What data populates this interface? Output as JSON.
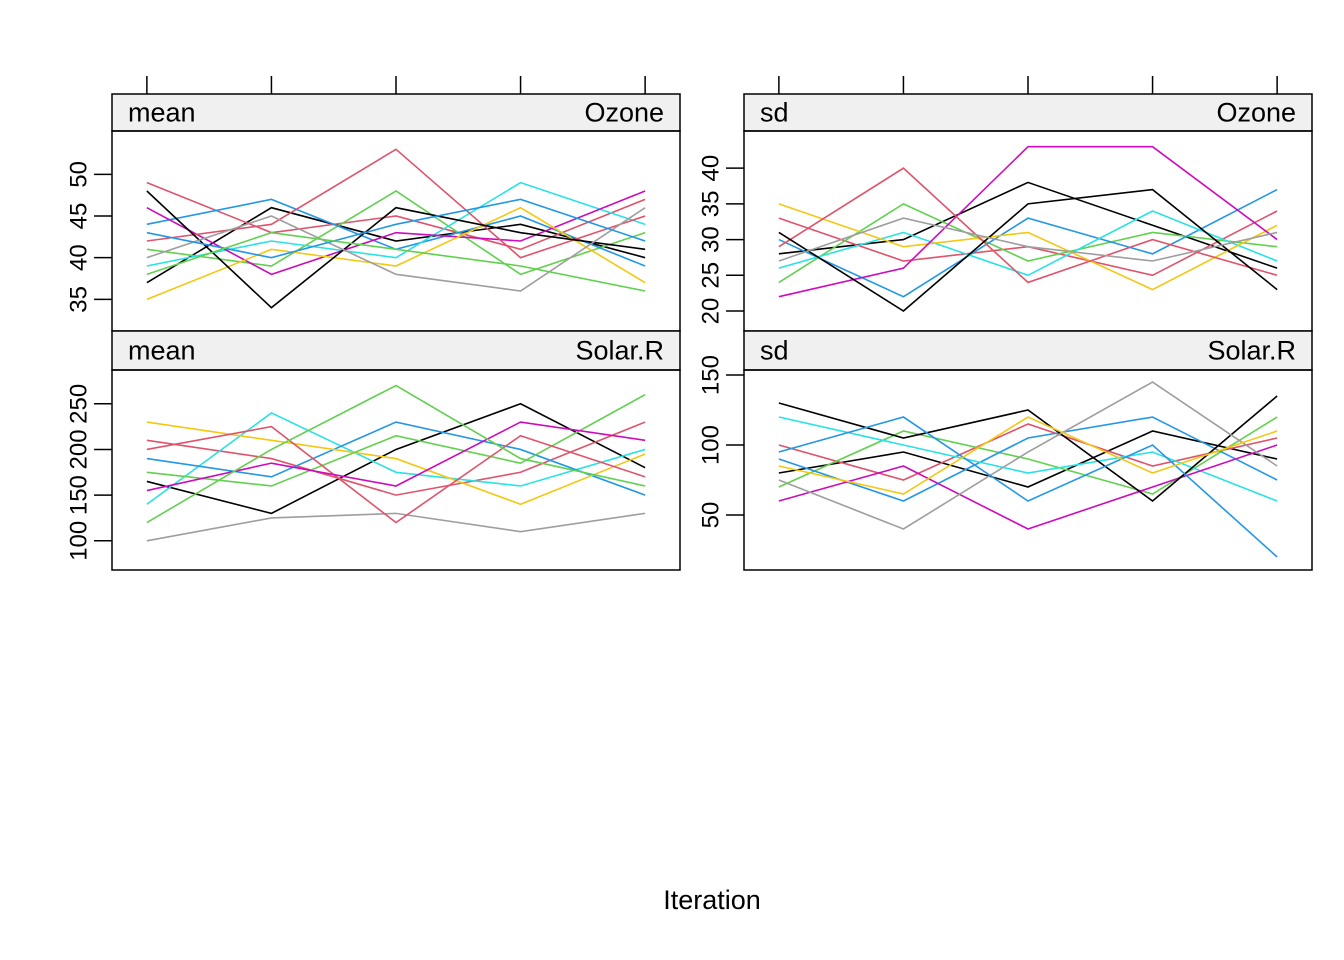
{
  "xlabel": "Iteration",
  "chart_data": [
    {
      "type": "line",
      "stat": "mean",
      "variable": "Ozone",
      "x": [
        1,
        2,
        3,
        4,
        5
      ],
      "xlim": [
        0.72,
        5.28
      ],
      "xticks": [
        1,
        2,
        3,
        4,
        5
      ],
      "ylim": [
        31.2,
        55.2
      ],
      "yticks": [
        35,
        40,
        45,
        50
      ],
      "series": [
        {
          "color": "#000000",
          "values": [
            37,
            46,
            42,
            44,
            40
          ]
        },
        {
          "color": "#DF536B",
          "values": [
            49,
            43,
            45,
            41,
            47
          ]
        },
        {
          "color": "#61D04F",
          "values": [
            41,
            39,
            48,
            38,
            43
          ]
        },
        {
          "color": "#2297E6",
          "values": [
            44,
            47,
            41,
            45,
            39
          ]
        },
        {
          "color": "#28E2E5",
          "values": [
            39,
            42,
            40,
            49,
            44
          ]
        },
        {
          "color": "#CD0BBC",
          "values": [
            46,
            38,
            43,
            42,
            48
          ]
        },
        {
          "color": "#F5C710",
          "values": [
            35,
            41,
            39,
            46,
            37
          ]
        },
        {
          "color": "#DF536B",
          "values": [
            42,
            44,
            53,
            40,
            45
          ]
        },
        {
          "color": "#000000",
          "values": [
            48,
            34,
            46,
            43,
            41
          ]
        },
        {
          "color": "#9E9E9E",
          "values": [
            40,
            45,
            38,
            36,
            46
          ]
        },
        {
          "color": "#2297E6",
          "values": [
            43,
            40,
            44,
            47,
            42
          ]
        },
        {
          "color": "#61D04F",
          "values": [
            38,
            43,
            41,
            39,
            36
          ]
        }
      ]
    },
    {
      "type": "line",
      "stat": "sd",
      "variable": "Ozone",
      "x": [
        1,
        2,
        3,
        4,
        5
      ],
      "xlim": [
        0.72,
        5.28
      ],
      "xticks": [
        1,
        2,
        3,
        4,
        5
      ],
      "ylim": [
        17.2,
        45.2
      ],
      "yticks": [
        20,
        25,
        30,
        35,
        40
      ],
      "series": [
        {
          "color": "#000000",
          "values": [
            28,
            30,
            38,
            32,
            26
          ]
        },
        {
          "color": "#DF536B",
          "values": [
            33,
            27,
            29,
            25,
            34
          ]
        },
        {
          "color": "#61D04F",
          "values": [
            24,
            35,
            27,
            31,
            29
          ]
        },
        {
          "color": "#2297E6",
          "values": [
            30,
            22,
            33,
            28,
            37
          ]
        },
        {
          "color": "#28E2E5",
          "values": [
            26,
            31,
            25,
            34,
            27
          ]
        },
        {
          "color": "#F5C710",
          "values": [
            35,
            29,
            31,
            23,
            32
          ]
        },
        {
          "color": "#CD0BBC",
          "values": [
            22,
            26,
            43,
            43,
            30
          ]
        },
        {
          "color": "#DF536B",
          "values": [
            29,
            40,
            24,
            30,
            25
          ]
        },
        {
          "color": "#000000",
          "values": [
            31,
            20,
            35,
            37,
            23
          ]
        },
        {
          "color": "#9E9E9E",
          "values": [
            27,
            33,
            29,
            27,
            31
          ]
        }
      ]
    },
    {
      "type": "line",
      "stat": "mean",
      "variable": "Solar.R",
      "x": [
        1,
        2,
        3,
        4,
        5
      ],
      "xlim": [
        0.72,
        5.28
      ],
      "ylim": [
        68,
        287
      ],
      "yticks": [
        100,
        150,
        200,
        250
      ],
      "series": [
        {
          "color": "#000000",
          "values": [
            165,
            130,
            200,
            250,
            180
          ]
        },
        {
          "color": "#DF536B",
          "values": [
            210,
            190,
            150,
            175,
            230
          ]
        },
        {
          "color": "#28E2E5",
          "values": [
            140,
            240,
            175,
            160,
            200
          ]
        },
        {
          "color": "#2297E6",
          "values": [
            190,
            170,
            230,
            200,
            150
          ]
        },
        {
          "color": "#F5C710",
          "values": [
            230,
            210,
            190,
            140,
            195
          ]
        },
        {
          "color": "#9E9E9E",
          "values": [
            100,
            125,
            130,
            110,
            130
          ]
        },
        {
          "color": "#61D04F",
          "values": [
            175,
            160,
            215,
            185,
            260
          ]
        },
        {
          "color": "#DF536B",
          "values": [
            200,
            225,
            120,
            215,
            170
          ]
        },
        {
          "color": "#CD0BBC",
          "values": [
            155,
            185,
            160,
            230,
            210
          ]
        },
        {
          "color": "#61D04F",
          "values": [
            120,
            200,
            270,
            190,
            160
          ]
        }
      ]
    },
    {
      "type": "line",
      "stat": "sd",
      "variable": "Solar.R",
      "x": [
        1,
        2,
        3,
        4,
        5
      ],
      "xlim": [
        0.72,
        5.28
      ],
      "ylim": [
        10.7,
        153.6
      ],
      "yticks": [
        50,
        100,
        150
      ],
      "series": [
        {
          "color": "#000000",
          "values": [
            80,
            95,
            70,
            110,
            90
          ]
        },
        {
          "color": "#DF536B",
          "values": [
            100,
            75,
            115,
            85,
            105
          ]
        },
        {
          "color": "#61D04F",
          "values": [
            70,
            110,
            90,
            65,
            120
          ]
        },
        {
          "color": "#2297E6",
          "values": [
            90,
            60,
            105,
            120,
            75
          ]
        },
        {
          "color": "#28E2E5",
          "values": [
            120,
            100,
            80,
            95,
            60
          ]
        },
        {
          "color": "#CD0BBC",
          "values": [
            60,
            85,
            40,
            70,
            100
          ]
        },
        {
          "color": "#000000",
          "values": [
            130,
            105,
            125,
            60,
            135
          ]
        },
        {
          "color": "#9E9E9E",
          "values": [
            75,
            40,
            95,
            145,
            85
          ]
        },
        {
          "color": "#2297E6",
          "values": [
            95,
            120,
            60,
            100,
            20
          ]
        },
        {
          "color": "#F5C710",
          "values": [
            85,
            65,
            120,
            80,
            110
          ]
        }
      ]
    }
  ]
}
